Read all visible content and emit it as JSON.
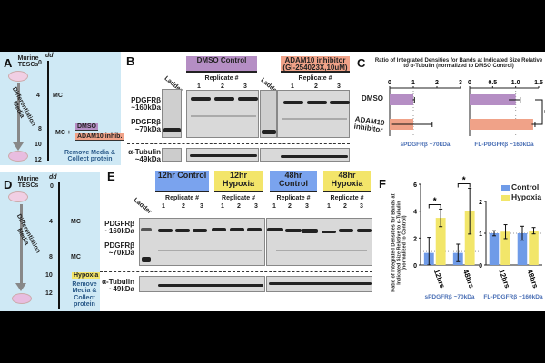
{
  "panelA": {
    "letter": "A",
    "source": "Murine TESCs",
    "dd": "dd",
    "media": "Differentiation Media",
    "ticks": [
      "0",
      "4",
      "8",
      "10",
      "12"
    ],
    "mc": "MC",
    "mc_plus": "MC +",
    "dmso": "DMSO",
    "adam": "ADAM10 inhib.",
    "remove": "Remove Media & Collect protein"
  },
  "panelD": {
    "letter": "D",
    "source": "Murine TESCs",
    "dd": "dd",
    "media": "Differentiation Media",
    "ticks": [
      "0",
      "4",
      "8",
      "10",
      "12"
    ],
    "mc": "MC",
    "hypoxia": "Hypoxia",
    "remove": "Remove Media & Collect protein"
  },
  "panelB": {
    "letter": "B",
    "ladder": "Ladder",
    "label160": "PDGFRβ ~160kDa",
    "label70": "PDGFRβ ~70kDa",
    "tubulin": "α-Tubulin ~49kDa",
    "groups": [
      {
        "label": "DMSO Control",
        "color": "#b58ec4"
      },
      {
        "label": "ADAM10 inhibitor (GI-254023X,10uM)",
        "color": "#f0a288"
      }
    ],
    "replicate": "Replicate #",
    "lanes": [
      "1",
      "2",
      "3"
    ]
  },
  "panelE": {
    "letter": "E",
    "ladder": "Ladder",
    "label160": "PDGFRβ ~160kDa",
    "label70": "PDGFRβ ~70kDa",
    "tubulin": "α-Tubulin ~49kDa",
    "groups": [
      {
        "label": "12hr Control",
        "color": "#7aa3ee"
      },
      {
        "label": "12hr Hypoxia",
        "color": "#f3e56a"
      },
      {
        "label": "48hr Control",
        "color": "#7aa3ee"
      },
      {
        "label": "48hr Hypoxia",
        "color": "#f3e56a"
      }
    ],
    "replicate": "Replicate #",
    "lanes": [
      "1",
      "2",
      "3"
    ]
  },
  "chart_data": [
    {
      "panel": "C",
      "type": "bar",
      "orientation": "horizontal",
      "title": "Ratio of Integrated Densities for Bands at Indicated Size Relative to α-Tubulin (normalized to DMSO Control)",
      "categories": [
        "DMSO",
        "ADAM10 inhibitor"
      ],
      "colors": [
        "#b58ec4",
        "#f0a288"
      ],
      "subplots": [
        {
          "xlabel": "sPDGFRβ ~70kDa",
          "xlim": [
            0,
            3
          ],
          "ticks": [
            "0",
            "1",
            "2",
            "3"
          ],
          "values": [
            1.0,
            1.0
          ],
          "err_low": [
            0.98,
            0.1
          ],
          "err_high": [
            1.05,
            1.8
          ],
          "sig": ""
        },
        {
          "xlabel": "FL-PDGFRβ ~160kDa",
          "xlim": [
            0,
            1.5
          ],
          "ticks": [
            "0",
            "0.5",
            "1.0",
            "1.5"
          ],
          "values": [
            1.0,
            1.38
          ],
          "err_low": [
            0.85,
            1.35
          ],
          "err_high": [
            1.1,
            1.42
          ],
          "sig": "*"
        }
      ]
    },
    {
      "panel": "F",
      "letter": "F",
      "type": "bar",
      "ylabel": "Ratio of Integrated Densities for Bands at Indicated Size Relative to α-Tubulin (normalized to Control)",
      "legend": [
        "Control",
        "Hypoxia"
      ],
      "colors": [
        "#6f9be8",
        "#f2e66a"
      ],
      "legend_position": "top-right",
      "categories": [
        "12hrs",
        "48hrs"
      ],
      "subplots": [
        {
          "xlabel": "sPDGFRβ ~70kDa",
          "ylim": [
            0,
            6
          ],
          "ticks": [
            "0",
            "2",
            "4",
            "6"
          ],
          "series": [
            {
              "name": "Control",
              "values": [
                0.9,
                0.9
              ],
              "err": [
                1.15,
                0.65
              ]
            },
            {
              "name": "Hypoxia",
              "values": [
                3.5,
                4.0
              ],
              "err": [
                0.65,
                1.7
              ]
            }
          ],
          "sig": [
            "*",
            "*"
          ]
        },
        {
          "xlabel": "FL-PDGFRβ ~160kDa",
          "ylim": [
            0,
            2
          ],
          "ticks": [
            "0",
            "1",
            "2"
          ],
          "series": [
            {
              "name": "Control",
              "values": [
                1.0,
                1.0
              ],
              "err": [
                0.08,
                0.22
              ]
            },
            {
              "name": "Hypoxia",
              "values": [
                1.05,
                1.08
              ],
              "err": [
                0.22,
                0.1
              ]
            }
          ],
          "sig": []
        }
      ]
    }
  ]
}
